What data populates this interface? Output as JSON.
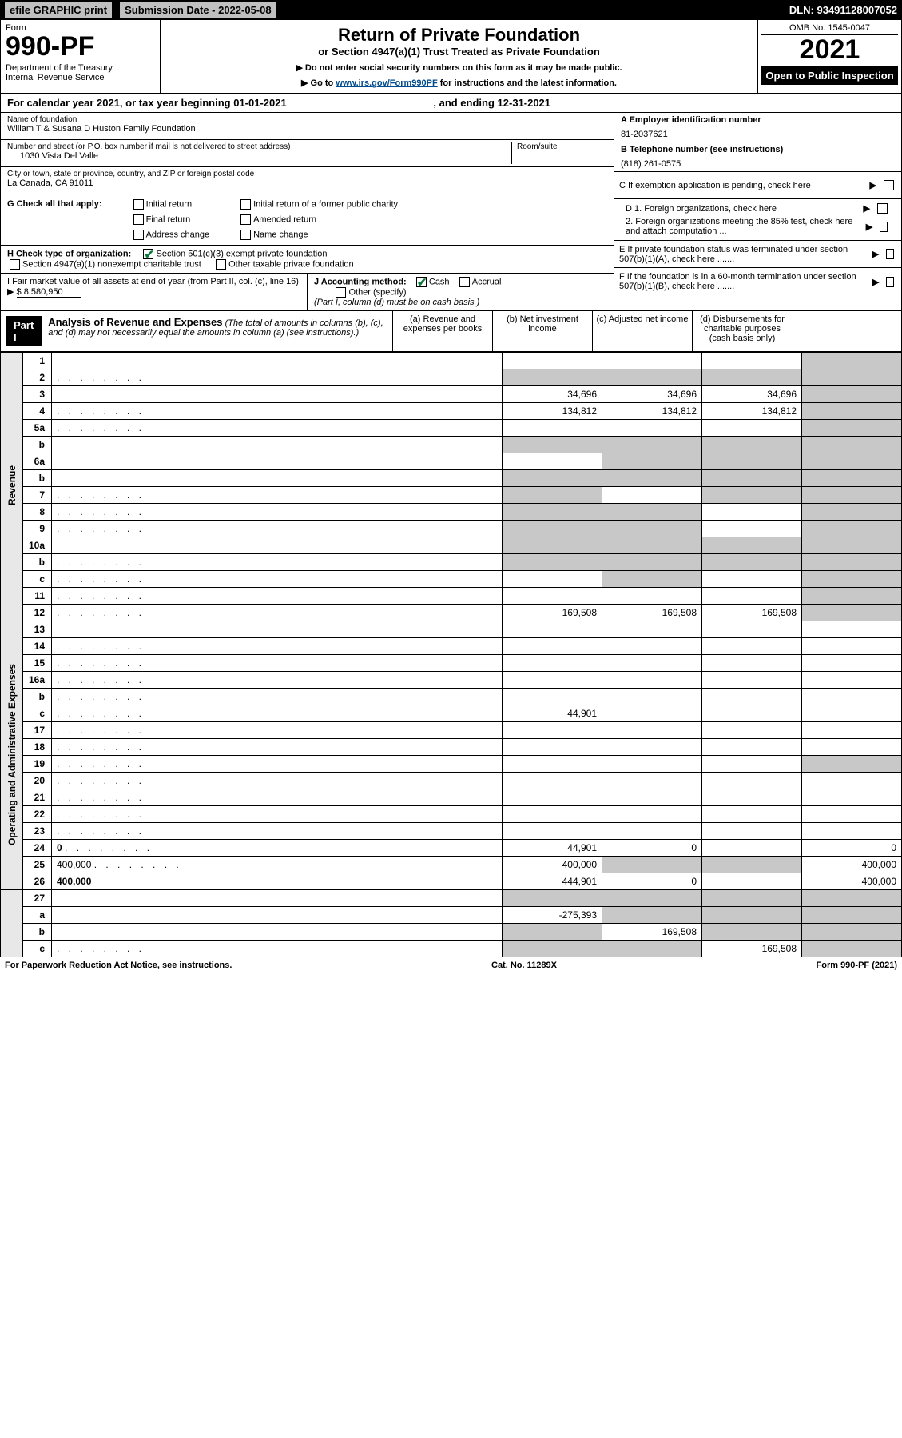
{
  "colors": {
    "black": "#000000",
    "white": "#ffffff",
    "link": "#004b8d",
    "shaded": "#c8c8c8",
    "side": "#e8e8e8",
    "topbar_box": "#c0c0c0",
    "check_green": "#0b7a3c"
  },
  "top_bar": {
    "efile": "efile GRAPHIC print",
    "submission": "Submission Date - 2022-05-08",
    "dln": "DLN: 93491128007052"
  },
  "header": {
    "form_label": "Form",
    "form_number": "990-PF",
    "dept": "Department of the Treasury",
    "irs": "Internal Revenue Service",
    "title": "Return of Private Foundation",
    "subtitle": "or Section 4947(a)(1) Trust Treated as Private Foundation",
    "instr1": "▶ Do not enter social security numbers on this form as it may be made public.",
    "instr2_pre": "▶ Go to ",
    "instr2_link": "www.irs.gov/Form990PF",
    "instr2_post": " for instructions and the latest information.",
    "omb": "OMB No. 1545-0047",
    "year": "2021",
    "open": "Open to Public Inspection"
  },
  "cal_year": {
    "text": "For calendar year 2021, or tax year beginning 01-01-2021",
    "mid": ", and ending 12-31-2021"
  },
  "entity": {
    "name_label": "Name of foundation",
    "name": "Willam T & Susana D Huston Family Foundation",
    "addr_label": "Number and street (or P.O. box number if mail is not delivered to street address)",
    "room_label": "Room/suite",
    "addr": "1030 Vista Del Valle",
    "city_label": "City or town, state or province, country, and ZIP or foreign postal code",
    "city": "La Canada, CA  91011",
    "ein_label": "A Employer identification number",
    "ein": "81-2037621",
    "phone_label": "B Telephone number (see instructions)",
    "phone": "(818) 261-0575",
    "c_text": "C If exemption application is pending, check here",
    "d1": "D 1. Foreign organizations, check here",
    "d2": "2. Foreign organizations meeting the 85% test, check here and attach computation ...",
    "e": "E  If private foundation status was terminated under section 507(b)(1)(A), check here .......",
    "f": "F  If the foundation is in a 60-month termination under section 507(b)(1)(B), check here .......",
    "g_label": "G Check all that apply:",
    "g_opts": [
      "Initial return",
      "Initial return of a former public charity",
      "Final return",
      "Amended return",
      "Address change",
      "Name change"
    ],
    "h_label": "H Check type of organization:",
    "h_opt1": "Section 501(c)(3) exempt private foundation",
    "h_opt2": "Section 4947(a)(1) nonexempt charitable trust",
    "h_opt3": "Other taxable private foundation",
    "i_label": "I Fair market value of all assets at end of year (from Part II, col. (c), line 16) ▶",
    "i_val": "$  8,580,950",
    "j_label": "J Accounting method:",
    "j_cash": "Cash",
    "j_accrual": "Accrual",
    "j_other": "Other (specify)",
    "j_note": "(Part I, column (d) must be on cash basis.)"
  },
  "part1": {
    "label": "Part I",
    "title": "Analysis of Revenue and Expenses",
    "note": "(The total of amounts in columns (b), (c), and (d) may not necessarily equal the amounts in column (a) (see instructions).)",
    "col_a": "(a)   Revenue and expenses per books",
    "col_b": "(b)   Net investment income",
    "col_c": "(c)   Adjusted net income",
    "col_d": "(d)   Disbursements for charitable purposes (cash basis only)"
  },
  "side_labels": {
    "revenue": "Revenue",
    "expenses": "Operating and Administrative Expenses"
  },
  "rows": [
    {
      "n": "1",
      "d": "",
      "a": "",
      "b": "",
      "c": "",
      "shade": [
        "d"
      ]
    },
    {
      "n": "2",
      "d": "",
      "dots": true,
      "a": "",
      "b": "",
      "c": "",
      "shade": [
        "a",
        "b",
        "c",
        "d"
      ]
    },
    {
      "n": "3",
      "d": "",
      "a": "34,696",
      "b": "34,696",
      "c": "34,696",
      "shade": [
        "d"
      ]
    },
    {
      "n": "4",
      "d": "",
      "dots": true,
      "a": "134,812",
      "b": "134,812",
      "c": "134,812",
      "shade": [
        "d"
      ]
    },
    {
      "n": "5a",
      "d": "",
      "dots": true,
      "a": "",
      "b": "",
      "c": "",
      "shade": [
        "d"
      ]
    },
    {
      "n": "b",
      "d": "",
      "a": "",
      "b": "",
      "c": "",
      "shade": [
        "a",
        "b",
        "c",
        "d"
      ]
    },
    {
      "n": "6a",
      "d": "",
      "a": "",
      "b": "",
      "c": "",
      "shade": [
        "b",
        "c",
        "d"
      ]
    },
    {
      "n": "b",
      "d": "",
      "a": "",
      "b": "",
      "c": "",
      "shade": [
        "a",
        "b",
        "c",
        "d"
      ]
    },
    {
      "n": "7",
      "d": "",
      "dots": true,
      "a": "",
      "b": "",
      "c": "",
      "shade": [
        "a",
        "c",
        "d"
      ]
    },
    {
      "n": "8",
      "d": "",
      "dots": true,
      "a": "",
      "b": "",
      "c": "",
      "shade": [
        "a",
        "b",
        "d"
      ]
    },
    {
      "n": "9",
      "d": "",
      "dots": true,
      "a": "",
      "b": "",
      "c": "",
      "shade": [
        "a",
        "b",
        "d"
      ]
    },
    {
      "n": "10a",
      "d": "",
      "a": "",
      "b": "",
      "c": "",
      "shade": [
        "a",
        "b",
        "c",
        "d"
      ]
    },
    {
      "n": "b",
      "d": "",
      "dots": true,
      "a": "",
      "b": "",
      "c": "",
      "shade": [
        "a",
        "b",
        "c",
        "d"
      ]
    },
    {
      "n": "c",
      "d": "",
      "dots": true,
      "a": "",
      "b": "",
      "c": "",
      "shade": [
        "b",
        "d"
      ]
    },
    {
      "n": "11",
      "d": "",
      "dots": true,
      "a": "",
      "b": "",
      "c": "",
      "shade": [
        "d"
      ]
    },
    {
      "n": "12",
      "d": "",
      "dots": true,
      "bold": true,
      "a": "169,508",
      "b": "169,508",
      "c": "169,508",
      "shade": [
        "d"
      ]
    },
    {
      "n": "13",
      "d": "",
      "a": "",
      "b": "",
      "c": ""
    },
    {
      "n": "14",
      "d": "",
      "dots": true,
      "a": "",
      "b": "",
      "c": ""
    },
    {
      "n": "15",
      "d": "",
      "dots": true,
      "a": "",
      "b": "",
      "c": ""
    },
    {
      "n": "16a",
      "d": "",
      "dots": true,
      "a": "",
      "b": "",
      "c": ""
    },
    {
      "n": "b",
      "d": "",
      "dots": true,
      "a": "",
      "b": "",
      "c": ""
    },
    {
      "n": "c",
      "d": "",
      "dots": true,
      "a": "44,901",
      "b": "",
      "c": ""
    },
    {
      "n": "17",
      "d": "",
      "dots": true,
      "a": "",
      "b": "",
      "c": ""
    },
    {
      "n": "18",
      "d": "",
      "dots": true,
      "a": "",
      "b": "",
      "c": ""
    },
    {
      "n": "19",
      "d": "",
      "dots": true,
      "a": "",
      "b": "",
      "c": "",
      "shade": [
        "d"
      ]
    },
    {
      "n": "20",
      "d": "",
      "dots": true,
      "a": "",
      "b": "",
      "c": ""
    },
    {
      "n": "21",
      "d": "",
      "dots": true,
      "a": "",
      "b": "",
      "c": ""
    },
    {
      "n": "22",
      "d": "",
      "dots": true,
      "a": "",
      "b": "",
      "c": ""
    },
    {
      "n": "23",
      "d": "",
      "dots": true,
      "a": "",
      "b": "",
      "c": ""
    },
    {
      "n": "24",
      "d": "0",
      "dots": true,
      "bold": true,
      "a": "44,901",
      "b": "0",
      "c": ""
    },
    {
      "n": "25",
      "d": "400,000",
      "dots": true,
      "a": "400,000",
      "b": "",
      "c": "",
      "shade": [
        "b",
        "c"
      ]
    },
    {
      "n": "26",
      "d": "400,000",
      "bold": true,
      "a": "444,901",
      "b": "0",
      "c": ""
    },
    {
      "n": "27",
      "d": "",
      "a": "",
      "b": "",
      "c": "",
      "shade": [
        "a",
        "b",
        "c",
        "d"
      ]
    },
    {
      "n": "a",
      "d": "",
      "bold": true,
      "a": "-275,393",
      "b": "",
      "c": "",
      "shade": [
        "b",
        "c",
        "d"
      ]
    },
    {
      "n": "b",
      "d": "",
      "bold": true,
      "a": "",
      "b": "169,508",
      "c": "",
      "shade": [
        "a",
        "c",
        "d"
      ]
    },
    {
      "n": "c",
      "d": "",
      "dots": true,
      "bold": true,
      "a": "",
      "b": "",
      "c": "169,508",
      "shade": [
        "a",
        "b",
        "d"
      ]
    }
  ],
  "footer": {
    "left": "For Paperwork Reduction Act Notice, see instructions.",
    "mid": "Cat. No. 11289X",
    "right": "Form 990-PF (2021)"
  }
}
